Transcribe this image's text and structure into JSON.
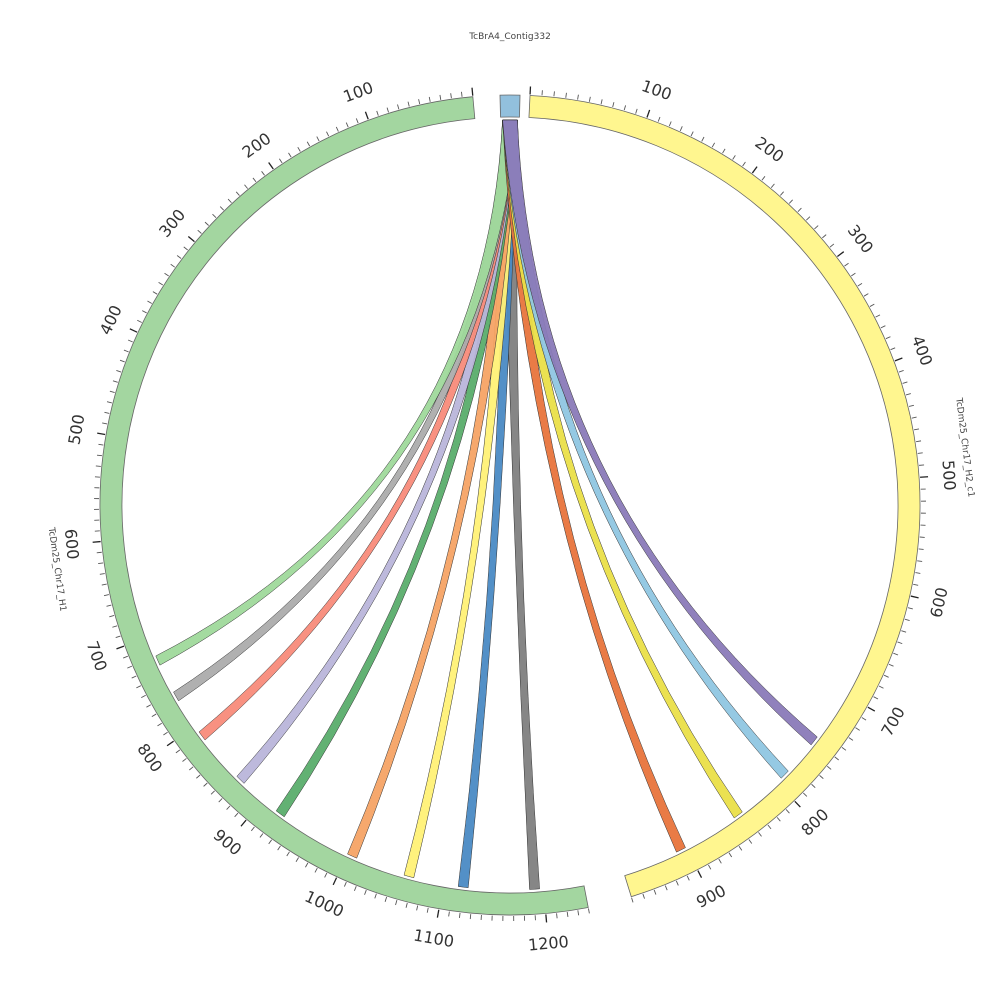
{
  "segments": [
    {
      "id": "contig",
      "name": "TcBrA4_Contig332",
      "color": "#92c0dd",
      "length": 10,
      "tick_start": null,
      "tick_end": null,
      "labeled_ticks": []
    },
    {
      "id": "h2",
      "name": "TcDm25_Chr17_H2_c1",
      "color": "#fff68f",
      "length": 960,
      "tick_start": 0,
      "tick_end": 960,
      "labeled_ticks": [
        100,
        200,
        300,
        400,
        500,
        600,
        700,
        800,
        900
      ]
    },
    {
      "id": "h1",
      "name": "TcDm25_Chr17_H1",
      "color": "#a3d6a0",
      "length": 1240,
      "tick_start": 0,
      "tick_end": 1240,
      "labeled_ticks": [
        100,
        200,
        300,
        400,
        500,
        600,
        700,
        800,
        900,
        1000,
        1100,
        1200
      ]
    }
  ],
  "links": [
    {
      "source": "contig",
      "target": "h1",
      "target_pos": 1191,
      "color": "#7f7f7f"
    },
    {
      "source": "contig",
      "target": "h1",
      "target_pos": 1120,
      "color": "#4a8ac4"
    },
    {
      "source": "contig",
      "target": "h1",
      "target_pos": 1065,
      "color": "#fff176"
    },
    {
      "source": "contig",
      "target": "h1",
      "target_pos": 1005,
      "color": "#f6a365"
    },
    {
      "source": "contig",
      "target": "h1",
      "target_pos": 922,
      "color": "#5aad6b"
    },
    {
      "source": "contig",
      "target": "h1",
      "target_pos": 870,
      "color": "#b9b5da"
    },
    {
      "source": "contig",
      "target": "h1",
      "target_pos": 812,
      "color": "#f88b7a"
    },
    {
      "source": "contig",
      "target": "h1",
      "target_pos": 765,
      "color": "#acacac"
    },
    {
      "source": "contig",
      "target": "h1",
      "target_pos": 725,
      "color": "#9fd99b"
    },
    {
      "source": "contig",
      "target": "h2",
      "target_pos": 905,
      "color": "#e8743c"
    },
    {
      "source": "contig",
      "target": "h2",
      "target_pos": 845,
      "color": "#eadf48"
    },
    {
      "source": "contig",
      "target": "h2",
      "target_pos": 790,
      "color": "#8fc6e2"
    },
    {
      "source": "contig",
      "target": "h2",
      "target_pos": 750,
      "color": "#8a7ab8"
    }
  ]
}
